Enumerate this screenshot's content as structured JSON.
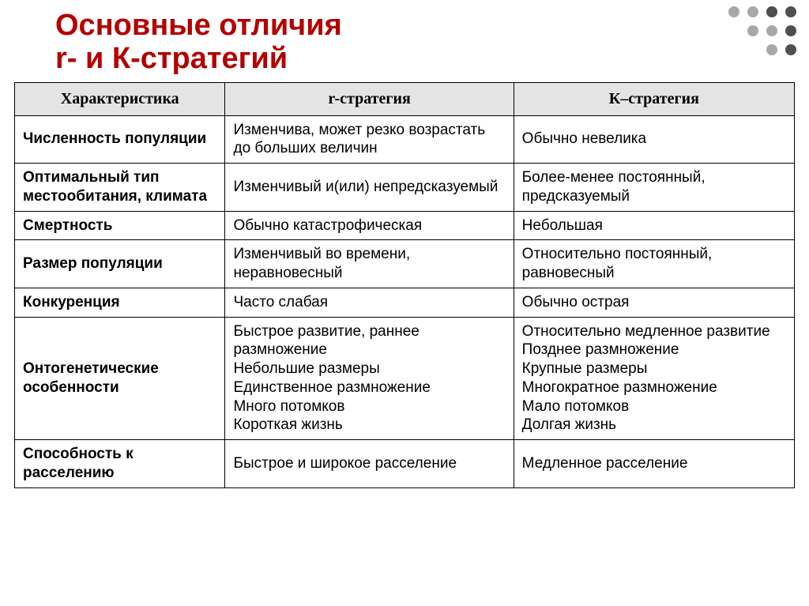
{
  "title": {
    "line1": "Основные отличия",
    "line2": "r- и К-стратегий",
    "color": "#b30000"
  },
  "decoration": {
    "dot_colors": [
      "#a8a8a8",
      "#a8a8a8",
      "#4f4f4f",
      "#4f4f4f",
      "#ffffff",
      "#a8a8a8",
      "#a8a8a8",
      "#4f4f4f",
      "#ffffff",
      "#ffffff",
      "#a8a8a8",
      "#4f4f4f"
    ]
  },
  "table": {
    "headers": [
      "Характеристика",
      "r-стратегия",
      "К–стратегия"
    ],
    "rows": [
      {
        "label": "Численность популяции",
        "r": "Изменчива, может резко возрастать до больших величин",
        "k": "Обычно невелика"
      },
      {
        "label": "Оптимальный тип местообитания, климата",
        "r": "Изменчивый и(или) непредсказуемый",
        "k": "Более-менее постоянный, предсказуемый"
      },
      {
        "label": "Смертность",
        "r": "Обычно катастрофическая",
        "k": "Небольшая"
      },
      {
        "label": "Размер популяции",
        "r": "Изменчивый во времени, неравновесный",
        "k": "Относительно постоянный, равновесный"
      },
      {
        "label": "Конкуренция",
        "r": "Часто слабая",
        "k": "Обычно острая"
      },
      {
        "label": "Онтогенетические особенности",
        "r": "Быстрое развитие, раннее размножение\nНебольшие размеры\nЕдинственное размножение\nМного потомков\nКороткая жизнь",
        "k": "Относительно медленное развитие\nПозднее размножение\nКрупные размеры\nМногократное размножение\nМало потомков\nДолгая жизнь"
      },
      {
        "label": "Способность к расселению",
        "r": "Быстрое и широкое расселение",
        "k": "Медленное расселение"
      }
    ]
  }
}
